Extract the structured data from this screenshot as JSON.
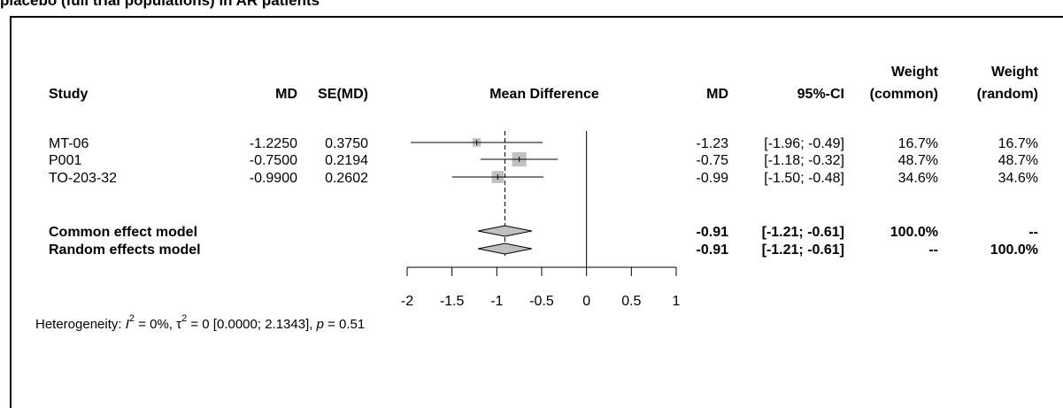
{
  "caption": "placebo (full trial populations) in AR patients",
  "headers": {
    "study": "Study",
    "md": "MD",
    "se": "SE(MD)",
    "effect": "Mean Difference",
    "md2": "MD",
    "ci": "95%-CI",
    "weight_common_1": "Weight",
    "weight_common_2": "(common)",
    "weight_random_1": "Weight",
    "weight_random_2": "(random)"
  },
  "heterogeneity": {
    "prefix": "Heterogeneity: ",
    "i2_symbol": "I",
    "i2_sup": "2",
    "i2_value": " = 0%, ",
    "tau_symbol": "τ",
    "tau_sup": "2",
    "tau_value": " = 0 [0.0000; 2.1343], ",
    "p_symbol": "p",
    "p_value": " = 0.51"
  },
  "chart_data": {
    "type": "forest",
    "xlim": [
      -2,
      1
    ],
    "x_ticks": [
      "-2",
      "-1.5",
      "-1",
      "-0.5",
      "0",
      "0.5",
      "1"
    ],
    "x_tick_values": [
      -2,
      -1.5,
      -1,
      -0.5,
      0,
      0.5,
      1
    ],
    "reference_line": 0,
    "pooled_line": -0.91,
    "studies": [
      {
        "study": "MT-06",
        "md": "-1.2250",
        "se": "0.3750",
        "md_est": -1.225,
        "lower": -1.96,
        "upper": -0.49,
        "md_text": "-1.23",
        "ci_text": "[-1.96; -0.49]",
        "w_common": "16.7%",
        "w_random": "16.7%",
        "weight": 16.7
      },
      {
        "study": "P001",
        "md": "-0.7500",
        "se": "0.2194",
        "md_est": -0.75,
        "lower": -1.18,
        "upper": -0.32,
        "md_text": "-0.75",
        "ci_text": "[-1.18; -0.32]",
        "w_common": "48.7%",
        "w_random": "48.7%",
        "weight": 48.7
      },
      {
        "study": "TO-203-32",
        "md": "-0.9900",
        "se": "0.2602",
        "md_est": -0.99,
        "lower": -1.5,
        "upper": -0.48,
        "md_text": "-0.99",
        "ci_text": "[-1.50; -0.48]",
        "w_common": "34.6%",
        "w_random": "34.6%",
        "weight": 34.6
      }
    ],
    "summaries": [
      {
        "label": "Common effect model",
        "md_est": -0.91,
        "lower": -1.21,
        "upper": -0.61,
        "md_text": "-0.91",
        "ci_text": "[-1.21; -0.61]",
        "w_common": "100.0%",
        "w_random": "--"
      },
      {
        "label": "Random effects model",
        "md_est": -0.91,
        "lower": -1.21,
        "upper": -0.61,
        "md_text": "-0.91",
        "ci_text": "[-1.21; -0.61]",
        "w_common": "--",
        "w_random": "100.0%"
      }
    ]
  }
}
